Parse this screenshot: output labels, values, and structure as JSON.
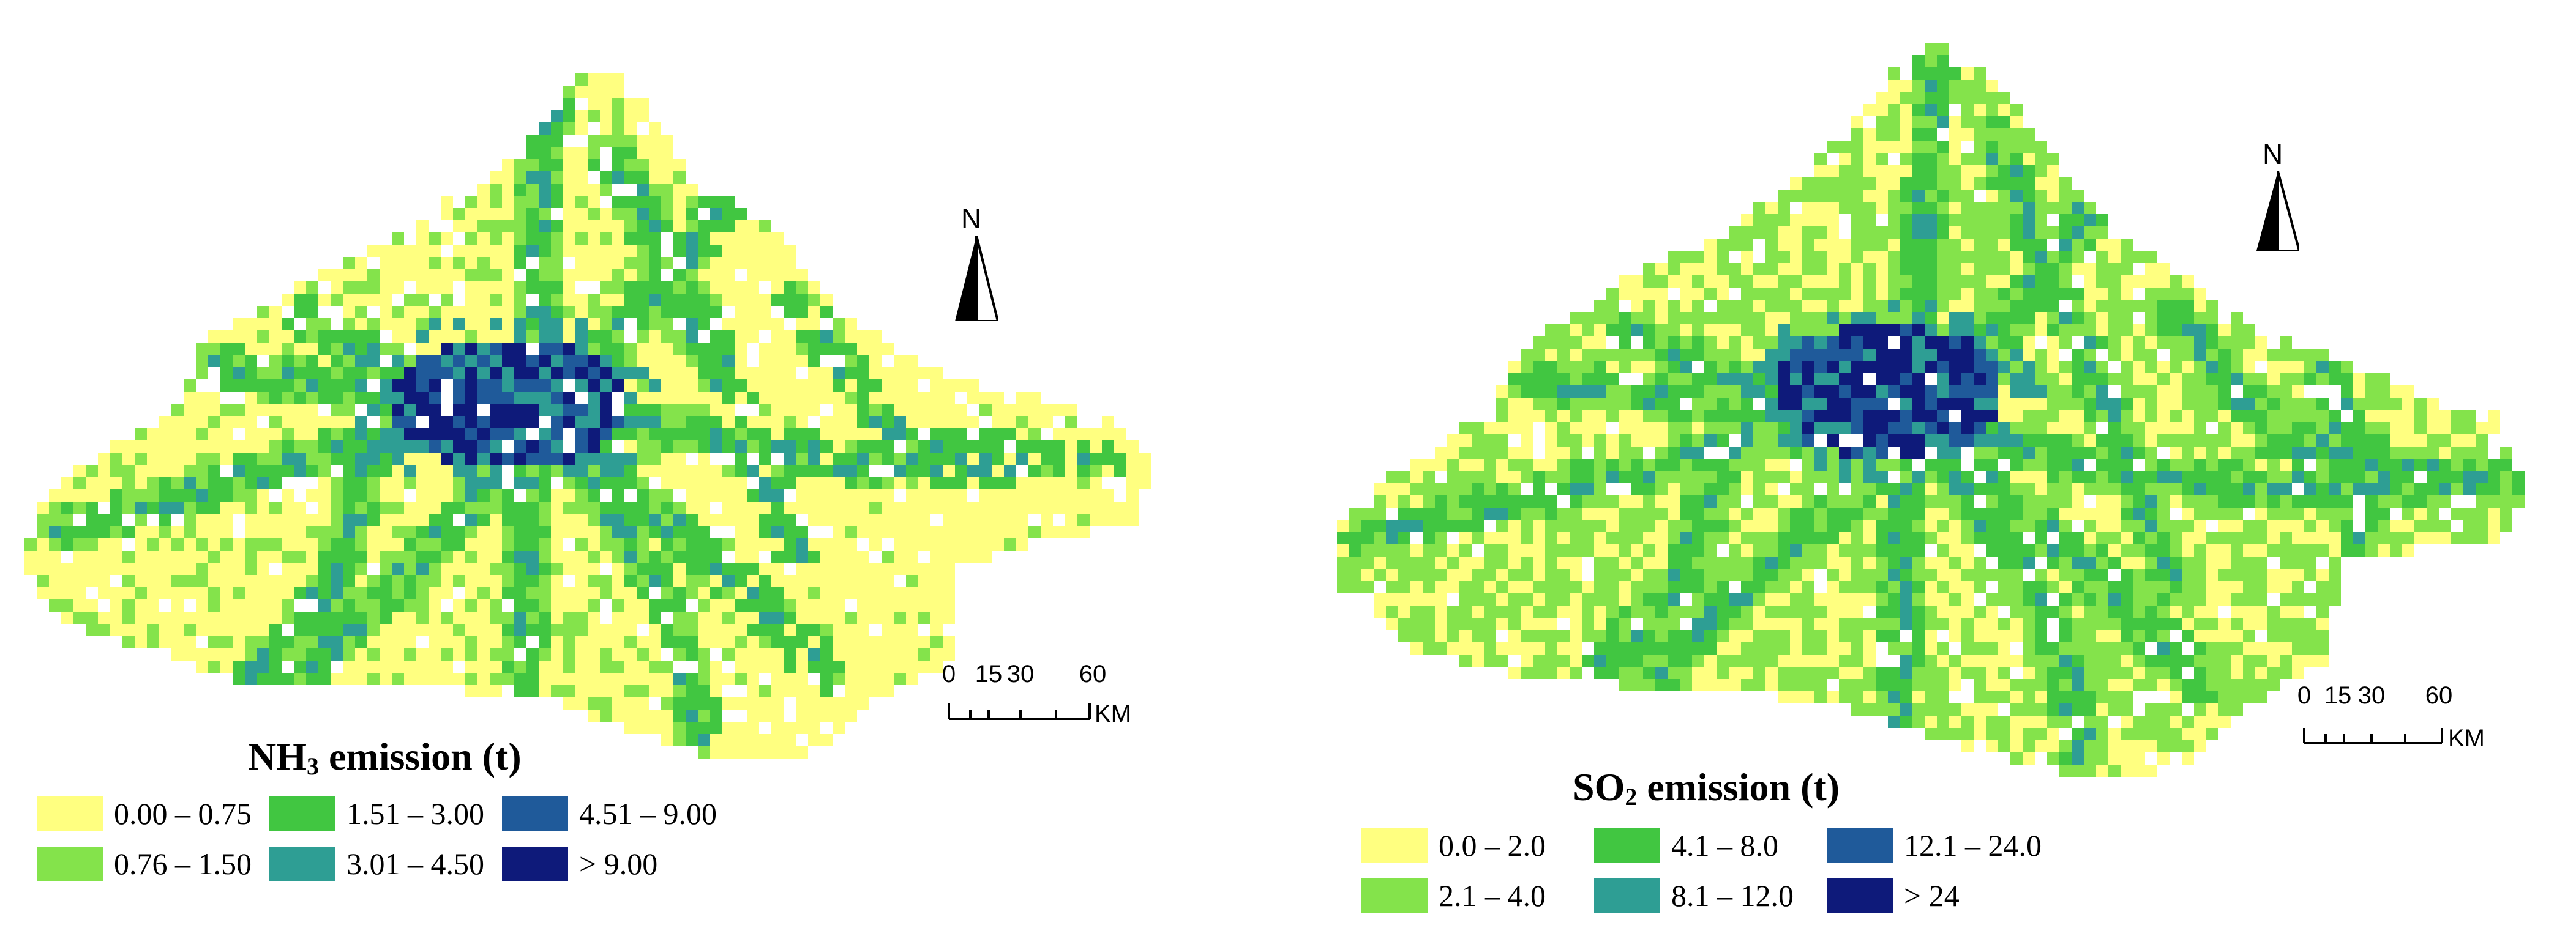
{
  "colors": {
    "class1": "#FFFF80",
    "class2": "#84E34B",
    "class3": "#41C641",
    "class4": "#2E9E94",
    "class5": "#1F5A9A",
    "class6": "#0E1A7A"
  },
  "maps": [
    {
      "id": "nh3",
      "legend_title_main": "NH",
      "legend_title_sub": "3",
      "legend_title_rest": " emission (t)",
      "classes": [
        {
          "label": "0.00 – 0.75",
          "color": "#FFFF80"
        },
        {
          "label": "0.76 – 1.50",
          "color": "#84E34B"
        },
        {
          "label": "1.51 – 3.00",
          "color": "#41C641"
        },
        {
          "label": "3.01 – 4.50",
          "color": "#2E9E94"
        },
        {
          "label": "4.51 – 9.00",
          "color": "#1F5A9A"
        },
        {
          "label": "> 9.00",
          "color": "#0E1A7A"
        }
      ],
      "north_label": "N",
      "scale": {
        "ticks": [
          "0",
          "15",
          "30",
          "60"
        ],
        "unit": "KM"
      }
    },
    {
      "id": "so2",
      "legend_title_main": "SO",
      "legend_title_sub": "2",
      "legend_title_rest": " emission (t)",
      "classes": [
        {
          "label": "0.0 – 2.0",
          "color": "#FFFF80"
        },
        {
          "label": "2.1 – 4.0",
          "color": "#84E34B"
        },
        {
          "label": "4.1 – 8.0",
          "color": "#41C641"
        },
        {
          "label": "8.1 – 12.0",
          "color": "#2E9E94"
        },
        {
          "label": "12.1 – 24.0",
          "color": "#1F5A9A"
        },
        {
          "label": "> 24",
          "color": "#0E1A7A"
        }
      ],
      "north_label": "N",
      "scale": {
        "ticks": [
          "0",
          "15",
          "30",
          "60"
        ],
        "unit": "KM"
      }
    }
  ]
}
